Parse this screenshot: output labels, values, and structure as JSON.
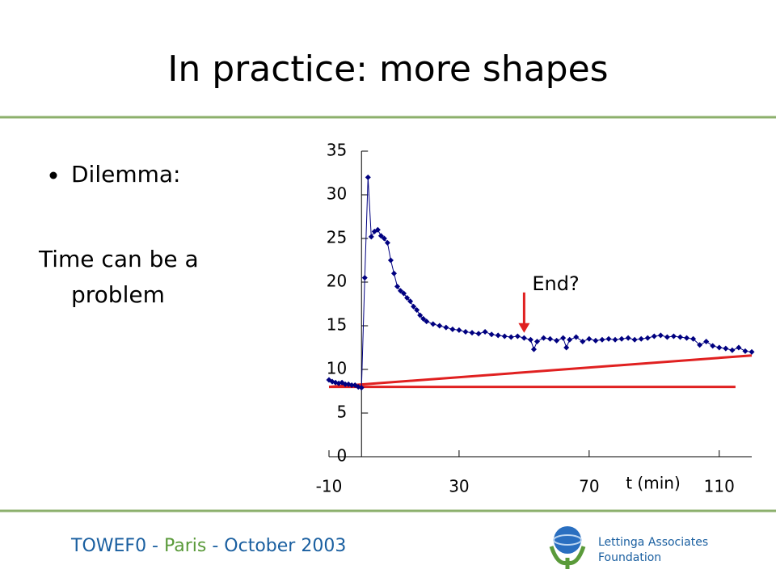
{
  "title": "In practice: more shapes",
  "bullet": "Dilemma:",
  "body": [
    "Time can be a",
    "problem"
  ],
  "footer": {
    "parts": [
      "TOWEF0 - ",
      "Paris",
      " - October 2003"
    ],
    "org": [
      "Lettinga Associates",
      "Foundation"
    ]
  },
  "chart_data": {
    "type": "scatter",
    "color": "#000080",
    "x": [
      -10,
      -9,
      -8,
      -7,
      -6,
      -5,
      -4,
      -3,
      -2,
      -1,
      0,
      1,
      2,
      3,
      4,
      5,
      6,
      7,
      8,
      9,
      10,
      11,
      12,
      13,
      14,
      15,
      16,
      17,
      18,
      19,
      20,
      22,
      24,
      26,
      28,
      30,
      32,
      34,
      36,
      38,
      40,
      42,
      44,
      46,
      48,
      50,
      52,
      53,
      54,
      56,
      58,
      60,
      62,
      63,
      64,
      66,
      68,
      70,
      72,
      74,
      76,
      78,
      80,
      82,
      84,
      86,
      88,
      90,
      92,
      94,
      96,
      98,
      100,
      102,
      104,
      106,
      108,
      110,
      112,
      114,
      116,
      118,
      120
    ],
    "values": [
      8.8,
      8.6,
      8.5,
      8.4,
      8.5,
      8.3,
      8.3,
      8.2,
      8.2,
      8.0,
      7.9,
      20.5,
      32,
      25.2,
      25.8,
      26,
      25.3,
      25,
      24.5,
      22.5,
      21,
      19.5,
      19,
      18.7,
      18.2,
      17.8,
      17.2,
      16.8,
      16.2,
      15.8,
      15.5,
      15.2,
      15,
      14.8,
      14.6,
      14.5,
      14.3,
      14.2,
      14.1,
      14.3,
      14,
      13.9,
      13.8,
      13.7,
      13.8,
      13.6,
      13.4,
      12.3,
      13.2,
      13.6,
      13.5,
      13.3,
      13.6,
      12.5,
      13.4,
      13.7,
      13.2,
      13.5,
      13.3,
      13.4,
      13.5,
      13.4,
      13.5,
      13.6,
      13.4,
      13.5,
      13.6,
      13.8,
      13.9,
      13.7,
      13.8,
      13.7,
      13.6,
      13.5,
      12.8,
      13.2,
      12.7,
      12.5,
      12.4,
      12.2,
      12.5,
      12.1,
      12.0
    ],
    "lines": [
      {
        "color": "#e02020",
        "x": [
          -10,
          115
        ],
        "values": [
          8,
          8
        ]
      },
      {
        "color": "#e02020",
        "x": [
          -10,
          120
        ],
        "values": [
          8,
          11.6
        ]
      }
    ],
    "annotation": {
      "text": "End?",
      "x": 50,
      "y": 14
    },
    "xlabel": "t (min)",
    "xlim": [
      -10,
      120
    ],
    "xticks": [
      -10,
      30,
      70,
      110
    ],
    "ylim": [
      0,
      35
    ],
    "yticks": [
      0,
      5,
      10,
      15,
      20,
      25,
      30,
      35
    ]
  }
}
